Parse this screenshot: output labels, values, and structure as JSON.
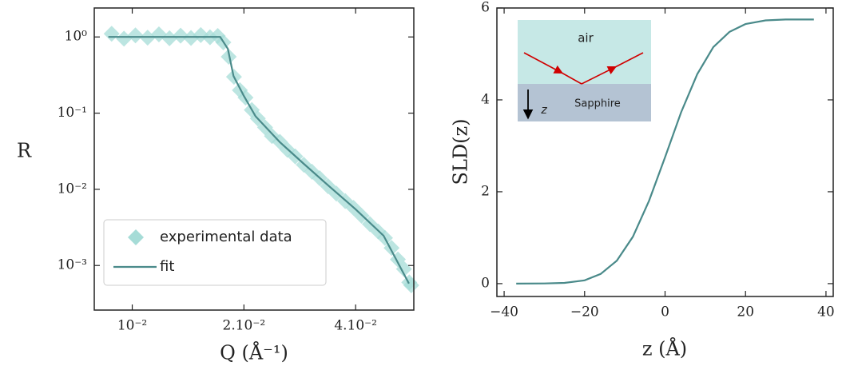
{
  "chart_data": [
    {
      "type": "line",
      "xlabel": "Q (Å⁻¹)",
      "ylabel": "R",
      "xscale": "log",
      "yscale": "log",
      "xlim": [
        0.0079,
        0.0574
      ],
      "ylim": [
        0.00026,
        2.4
      ],
      "xticks": [
        {
          "value": 0.01,
          "label": "10⁻²"
        },
        {
          "value": 0.02,
          "label": "2.10⁻²"
        },
        {
          "value": 0.04,
          "label": "4.10⁻²"
        }
      ],
      "yticks": [
        {
          "value": 1,
          "label": "10⁰"
        },
        {
          "value": 0.1,
          "label": "10⁻¹"
        },
        {
          "value": 0.01,
          "label": "10⁻²"
        },
        {
          "value": 0.001,
          "label": "10⁻³"
        }
      ],
      "legend": "lower left",
      "series": [
        {
          "name": "experimental data",
          "type": "scatter",
          "color": "#a6dcd7",
          "x": [
            0.0088,
            0.0095,
            0.0102,
            0.011,
            0.0118,
            0.0126,
            0.0135,
            0.0144,
            0.0153,
            0.0162,
            0.017,
            0.0176,
            0.0182,
            0.0188,
            0.0195,
            0.0202,
            0.021,
            0.0218,
            0.0228,
            0.0238,
            0.025,
            0.0262,
            0.0275,
            0.029,
            0.0305,
            0.032,
            0.0337,
            0.0355,
            0.0375,
            0.0395,
            0.0415,
            0.0437,
            0.046,
            0.048,
            0.05,
            0.052,
            0.054,
            0.0558,
            0.0565
          ],
          "values": [
            1.1,
            0.95,
            1.05,
            0.98,
            1.08,
            0.96,
            1.04,
            0.97,
            1.06,
            0.99,
            1.03,
            0.85,
            0.55,
            0.3,
            0.2,
            0.16,
            0.11,
            0.085,
            0.065,
            0.05,
            0.042,
            0.033,
            0.027,
            0.021,
            0.017,
            0.014,
            0.011,
            0.0088,
            0.007,
            0.0057,
            0.0045,
            0.0035,
            0.0028,
            0.0023,
            0.0017,
            0.0012,
            0.0009,
            0.0006,
            0.00055
          ]
        },
        {
          "name": "fit",
          "type": "line",
          "color": "#4a8a8a",
          "x": [
            0.00862,
            0.01726,
            0.0181,
            0.01875,
            0.02,
            0.0215,
            0.025,
            0.029,
            0.0337,
            0.04,
            0.0476,
            0.0557
          ],
          "values": [
            1,
            1,
            0.7,
            0.307,
            0.168,
            0.091,
            0.0415,
            0.0216,
            0.0113,
            0.00547,
            0.00246,
            0.00058
          ]
        }
      ]
    },
    {
      "type": "line",
      "xlabel": "z (Å)",
      "ylabel": "SLD(z)",
      "xlim": [
        -41.8,
        41.8
      ],
      "ylim": [
        -0.28,
        6
      ],
      "xticks": [
        {
          "value": -40,
          "label": "−40"
        },
        {
          "value": -20,
          "label": "−20"
        },
        0,
        20,
        40
      ],
      "yticks": [
        0,
        2,
        4,
        6
      ],
      "annotations": [
        "air",
        "Sapphire",
        "z"
      ],
      "series": [
        {
          "type": "line",
          "color": "#4a8a8a",
          "x": [
            -37,
            -30,
            -25,
            -20,
            -16,
            -12,
            -8,
            -4,
            0,
            4,
            8,
            12,
            16,
            20,
            25,
            30,
            37
          ],
          "values": [
            0,
            0.003,
            0.016,
            0.072,
            0.21,
            0.5,
            1.02,
            1.8,
            2.75,
            3.73,
            4.56,
            5.15,
            5.48,
            5.65,
            5.73,
            5.75,
            5.75
          ]
        }
      ]
    }
  ]
}
